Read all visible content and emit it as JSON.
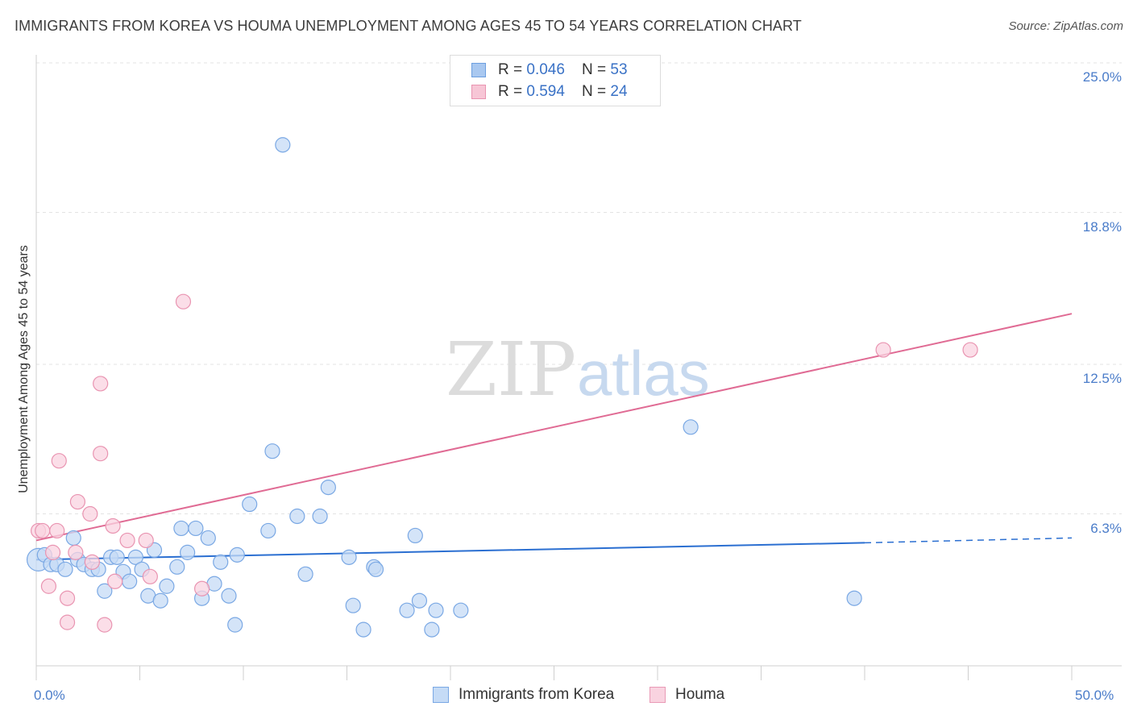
{
  "title": "IMMIGRANTS FROM KOREA VS HOUMA UNEMPLOYMENT AMONG AGES 45 TO 54 YEARS CORRELATION CHART",
  "source": "Source: ZipAtlas.com",
  "watermark": {
    "zip": "ZIP",
    "atlas": "atlas"
  },
  "legend_top": [
    {
      "r_label": "R = ",
      "r_value": "0.046",
      "n_label": "N = ",
      "n_value": "53",
      "color": "#a9c8f0",
      "border": "#6d9fe0"
    },
    {
      "r_label": "R = ",
      "r_value": "0.594",
      "n_label": "N = ",
      "n_value": "24",
      "color": "#f7c6d6",
      "border": "#e994b1"
    }
  ],
  "legend_bottom": [
    {
      "label": "Immigrants from Korea",
      "color": "#c5dbf6",
      "border": "#7aa8e4"
    },
    {
      "label": "Houma",
      "color": "#f9d3e0",
      "border": "#e99ab6"
    }
  ],
  "chart_data": {
    "type": "scatter",
    "title": "IMMIGRANTS FROM KOREA VS HOUMA UNEMPLOYMENT AMONG AGES 45 TO 54 YEARS CORRELATION CHART",
    "xlabel": "",
    "ylabel": "Unemployment Among Ages 45 to 54 years",
    "xlim": [
      0,
      50
    ],
    "ylim": [
      0,
      25
    ],
    "x_tick_labels": [
      "0.0%",
      "50.0%"
    ],
    "y_tick_labels": [
      "25.0%",
      "18.8%",
      "12.5%",
      "6.3%"
    ],
    "y_ticks": [
      25.0,
      18.8,
      12.5,
      6.3
    ],
    "grid": true,
    "series": [
      {
        "name": "Immigrants from Korea",
        "color": "#7aa8e4",
        "fill": "#c5dbf6",
        "points": [
          [
            0.1,
            4.4
          ],
          [
            0.4,
            4.6
          ],
          [
            0.7,
            4.2
          ],
          [
            1.0,
            4.2
          ],
          [
            1.4,
            4.0
          ],
          [
            1.8,
            5.3
          ],
          [
            2.0,
            4.4
          ],
          [
            2.3,
            4.2
          ],
          [
            2.7,
            4.0
          ],
          [
            3.0,
            4.0
          ],
          [
            3.3,
            3.1
          ],
          [
            3.6,
            4.5
          ],
          [
            3.9,
            4.5
          ],
          [
            4.2,
            3.9
          ],
          [
            4.5,
            3.5
          ],
          [
            4.8,
            4.5
          ],
          [
            5.1,
            4.0
          ],
          [
            5.4,
            2.9
          ],
          [
            5.7,
            4.8
          ],
          [
            6.0,
            2.7
          ],
          [
            6.3,
            3.3
          ],
          [
            6.8,
            4.1
          ],
          [
            7.0,
            5.7
          ],
          [
            7.3,
            4.7
          ],
          [
            7.7,
            5.7
          ],
          [
            8.0,
            2.8
          ],
          [
            8.3,
            5.3
          ],
          [
            8.6,
            3.4
          ],
          [
            8.9,
            4.3
          ],
          [
            9.3,
            2.9
          ],
          [
            9.6,
            1.7
          ],
          [
            9.7,
            4.6
          ],
          [
            10.3,
            6.7
          ],
          [
            11.2,
            5.6
          ],
          [
            11.4,
            8.9
          ],
          [
            11.9,
            21.6
          ],
          [
            12.6,
            6.2
          ],
          [
            13.0,
            3.8
          ],
          [
            13.7,
            6.2
          ],
          [
            14.1,
            7.4
          ],
          [
            15.1,
            4.5
          ],
          [
            15.3,
            2.5
          ],
          [
            15.8,
            1.5
          ],
          [
            16.3,
            4.1
          ],
          [
            16.4,
            4.0
          ],
          [
            17.9,
            2.3
          ],
          [
            18.3,
            5.4
          ],
          [
            18.5,
            2.7
          ],
          [
            19.1,
            1.5
          ],
          [
            19.3,
            2.3
          ],
          [
            20.5,
            2.3
          ],
          [
            31.6,
            9.9
          ],
          [
            39.5,
            2.8
          ]
        ],
        "trend": {
          "x": [
            0,
            40,
            50
          ],
          "y": [
            4.4,
            5.1,
            5.3
          ],
          "dashed_from": 40
        }
      },
      {
        "name": "Houma",
        "color": "#e994b1",
        "fill": "#f9d3e0",
        "points": [
          [
            0.1,
            5.6
          ],
          [
            0.3,
            5.6
          ],
          [
            0.6,
            3.3
          ],
          [
            0.8,
            4.7
          ],
          [
            1.0,
            5.6
          ],
          [
            1.1,
            8.5
          ],
          [
            1.5,
            2.8
          ],
          [
            1.5,
            1.8
          ],
          [
            1.9,
            4.7
          ],
          [
            2.0,
            6.8
          ],
          [
            2.6,
            6.3
          ],
          [
            2.7,
            4.3
          ],
          [
            3.1,
            11.7
          ],
          [
            3.1,
            8.8
          ],
          [
            3.3,
            1.7
          ],
          [
            3.7,
            5.8
          ],
          [
            3.8,
            3.5
          ],
          [
            4.4,
            5.2
          ],
          [
            5.3,
            5.2
          ],
          [
            5.5,
            3.7
          ],
          [
            7.1,
            15.1
          ],
          [
            8.0,
            3.2
          ],
          [
            40.9,
            13.1
          ],
          [
            45.1,
            13.1
          ]
        ],
        "trend": {
          "x": [
            0,
            50
          ],
          "y": [
            5.2,
            14.6
          ]
        }
      }
    ]
  }
}
